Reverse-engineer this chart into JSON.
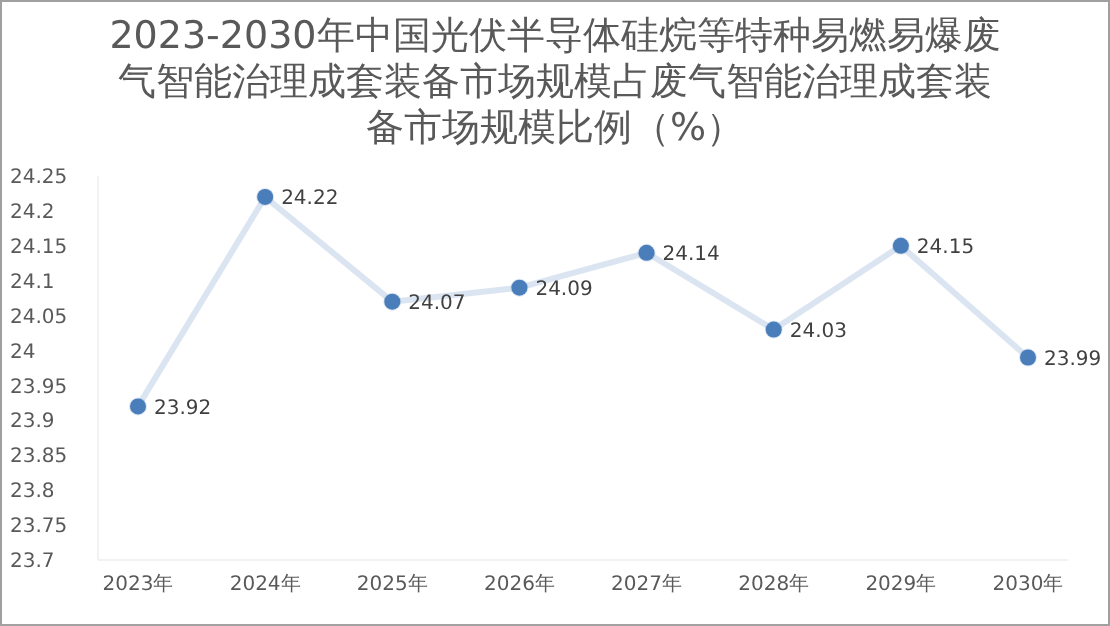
{
  "chart_data": {
    "type": "line",
    "title": "2023-2030年中国光伏半导体硅烷等特种易燃易爆废气智能治理成套装备市场规模占废气智能治理成套装备市场规模比例（%）",
    "categories": [
      "2023年",
      "2024年",
      "2025年",
      "2026年",
      "2027年",
      "2028年",
      "2029年",
      "2030年"
    ],
    "series": [
      {
        "color": "#4a7ebb",
        "values": [
          23.92,
          24.22,
          24.07,
          24.09,
          24.14,
          24.03,
          24.15,
          23.99
        ]
      }
    ],
    "marker": "circle",
    "data_labels": true,
    "grid": false,
    "legend": false,
    "ylim": [
      23.7,
      24.25
    ],
    "yticks": [
      23.7,
      23.75,
      23.8,
      23.85,
      23.9,
      23.95,
      24,
      24.05,
      24.1,
      24.15,
      24.2,
      24.25
    ]
  }
}
